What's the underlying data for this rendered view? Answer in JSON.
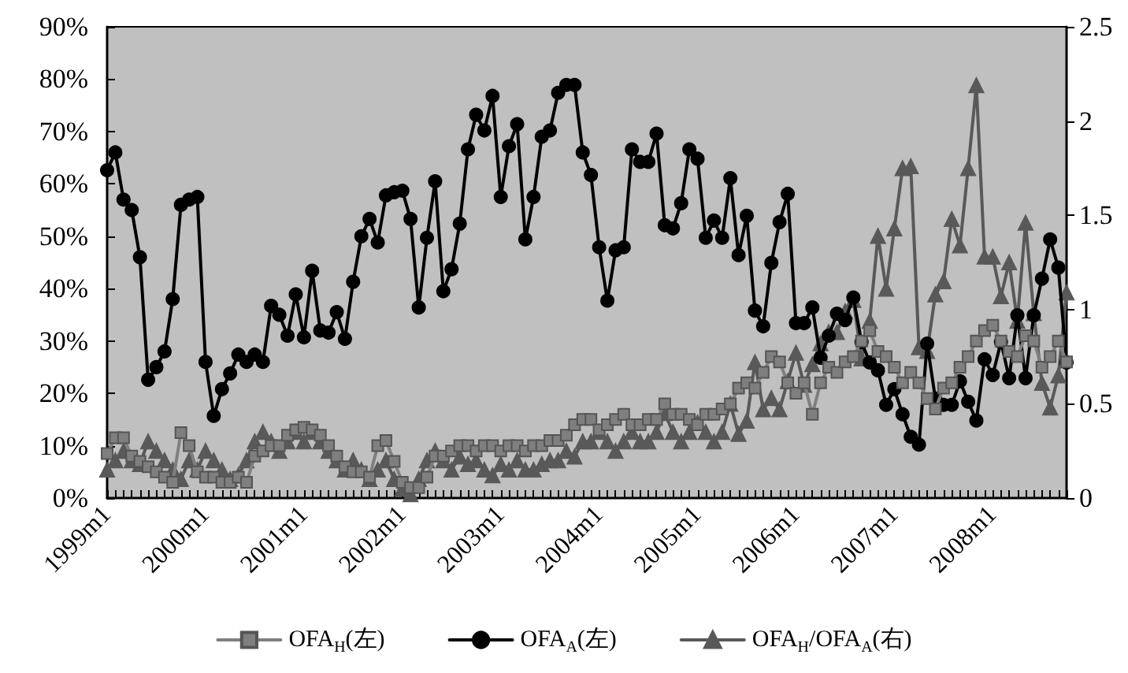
{
  "chart_data": {
    "type": "line",
    "categories": [
      "1999m1",
      null,
      null,
      null,
      null,
      null,
      null,
      null,
      null,
      null,
      null,
      null,
      "2000m1",
      null,
      null,
      null,
      null,
      null,
      null,
      null,
      null,
      null,
      null,
      null,
      "2001m1",
      null,
      null,
      null,
      null,
      null,
      null,
      null,
      null,
      null,
      null,
      null,
      "2002m1",
      null,
      null,
      null,
      null,
      null,
      null,
      null,
      null,
      null,
      null,
      null,
      "2003m1",
      null,
      null,
      null,
      null,
      null,
      null,
      null,
      null,
      null,
      null,
      null,
      "2004m1",
      null,
      null,
      null,
      null,
      null,
      null,
      null,
      null,
      null,
      null,
      null,
      "2005m1",
      null,
      null,
      null,
      null,
      null,
      null,
      null,
      null,
      null,
      null,
      null,
      "2006m1",
      null,
      null,
      null,
      null,
      null,
      null,
      null,
      null,
      null,
      null,
      null,
      "2007m1",
      null,
      null,
      null,
      null,
      null,
      null,
      null,
      null,
      null,
      null,
      null,
      "2008m1",
      null,
      null,
      null,
      null,
      null,
      null,
      null,
      null,
      null
    ],
    "series": [
      {
        "name": "OFA$_{H}$(左)",
        "color": "#7f7f7f",
        "marker": "square",
        "values": [
          8.5,
          11.5,
          11.5,
          8,
          7,
          6,
          5,
          4,
          3,
          12.5,
          10,
          5,
          4,
          4,
          3,
          3,
          4,
          3,
          8,
          9,
          10,
          10,
          12,
          13,
          13.5,
          13,
          12,
          10,
          8,
          6,
          5,
          5,
          4,
          10,
          11,
          7,
          3,
          2,
          2,
          4,
          8,
          8,
          9,
          10,
          10,
          9,
          10,
          10,
          9,
          10,
          10,
          9,
          10,
          10,
          11,
          11,
          12,
          14,
          15,
          15,
          13,
          14,
          15,
          16,
          14,
          14,
          15,
          15,
          18,
          16,
          16,
          15,
          14,
          16,
          16,
          17,
          18,
          21,
          22,
          21,
          24,
          27,
          26,
          22,
          20,
          22,
          16,
          22,
          25,
          24,
          26,
          27,
          30,
          32,
          28,
          27,
          25,
          22,
          24,
          22,
          19,
          17,
          21,
          22,
          25,
          27,
          30,
          32,
          33,
          30,
          28,
          27,
          31,
          30,
          25,
          27,
          30,
          26
        ]
      },
      {
        "name": "OFA$_{A}$(左)",
        "color": "#000000",
        "marker": "circle",
        "values": [
          62.6,
          66,
          57,
          55,
          46,
          22.6,
          25,
          28,
          38,
          56,
          57,
          57.5,
          26,
          15.7,
          20.8,
          23.8,
          27.4,
          26,
          27.4,
          26,
          36.7,
          35,
          31,
          38.9,
          30.7,
          43.4,
          32,
          31.6,
          35.5,
          30.4,
          41.3,
          50,
          53.3,
          48.8,
          57.8,
          58.4,
          58.7,
          53.3,
          36.4,
          49.7,
          60.5,
          39.5,
          43.7,
          52.4,
          66.6,
          73.2,
          70.2,
          76.8,
          57.5,
          67.2,
          71.4,
          49.4,
          57.5,
          69,
          70.2,
          77.4,
          78.9,
          78.9,
          66,
          61.7,
          47.9,
          37.7,
          47.3,
          47.9,
          66.6,
          64.2,
          64.2,
          69.6,
          52.1,
          51.5,
          56.3,
          66.6,
          64.8,
          49.7,
          53,
          49.7,
          61.1,
          46.4,
          53.9,
          35.8,
          32.8,
          44.9,
          52.7,
          58.1,
          33.4,
          33.4,
          36.4,
          26.8,
          31,
          35.2,
          34,
          38.3,
          29.8,
          25.9,
          24.4,
          17.8,
          20.8,
          16,
          11.7,
          10.2,
          29.5,
          19,
          17.8,
          17.8,
          22.3,
          18.4,
          14.8,
          26.5,
          23.5,
          29.8,
          22.9,
          34.9,
          22.9,
          34.9,
          41.9,
          49.4,
          44,
          25.9
        ]
      },
      {
        "name": "OFA$_{H}$/OFA$_{A}$(右)",
        "color": "#595959",
        "marker": "triangle",
        "axis": "y2",
        "values": [
          0.15,
          0.2,
          0.25,
          0.2,
          0.18,
          0.3,
          0.25,
          0.2,
          0.15,
          0.1,
          0.2,
          0.15,
          0.25,
          0.2,
          0.15,
          0.1,
          0.12,
          0.2,
          0.3,
          0.35,
          0.3,
          0.25,
          0.3,
          0.35,
          0.3,
          0.35,
          0.3,
          0.25,
          0.2,
          0.15,
          0.2,
          0.15,
          0.1,
          0.15,
          0.2,
          0.1,
          0.05,
          0.02,
          0.1,
          0.2,
          0.25,
          0.2,
          0.15,
          0.22,
          0.18,
          0.2,
          0.15,
          0.12,
          0.18,
          0.15,
          0.2,
          0.15,
          0.15,
          0.18,
          0.2,
          0.2,
          0.25,
          0.22,
          0.3,
          0.3,
          0.35,
          0.3,
          0.25,
          0.3,
          0.35,
          0.3,
          0.3,
          0.35,
          0.45,
          0.35,
          0.3,
          0.35,
          0.4,
          0.35,
          0.3,
          0.35,
          0.5,
          0.34,
          0.41,
          0.72,
          0.47,
          0.53,
          0.47,
          0.62,
          0.77,
          0.6,
          0.71,
          0.82,
          0.88,
          0.88,
          0.99,
          1.05,
          0.74,
          0.94,
          1.39,
          1.11,
          1.43,
          1.75,
          1.76,
          0.8,
          0.78,
          1.08,
          1.15,
          1.48,
          1.34,
          1.75,
          2.19,
          1.28,
          1.28,
          1.07,
          1.25,
          0.94,
          1.46,
          0.98,
          0.61,
          0.48,
          0.65,
          1.09
        ]
      }
    ],
    "ylim": [
      0,
      90
    ],
    "yticks": [
      {
        "value": 0,
        "label": "0%"
      },
      {
        "value": 10,
        "label": "10%"
      },
      {
        "value": 20,
        "label": "20%"
      },
      {
        "value": 30,
        "label": "30%"
      },
      {
        "value": 40,
        "label": "40%"
      },
      {
        "value": 50,
        "label": "50%"
      },
      {
        "value": 60,
        "label": "60%"
      },
      {
        "value": 70,
        "label": "70%"
      },
      {
        "value": 80,
        "label": "80%"
      },
      {
        "value": 90,
        "label": "90%"
      }
    ],
    "y2lim": [
      0,
      2.5
    ],
    "y2ticks": [
      0,
      0.5,
      1,
      1.5,
      2,
      2.5
    ],
    "grid": false,
    "legend": "bottom",
    "line_style": "solid"
  }
}
